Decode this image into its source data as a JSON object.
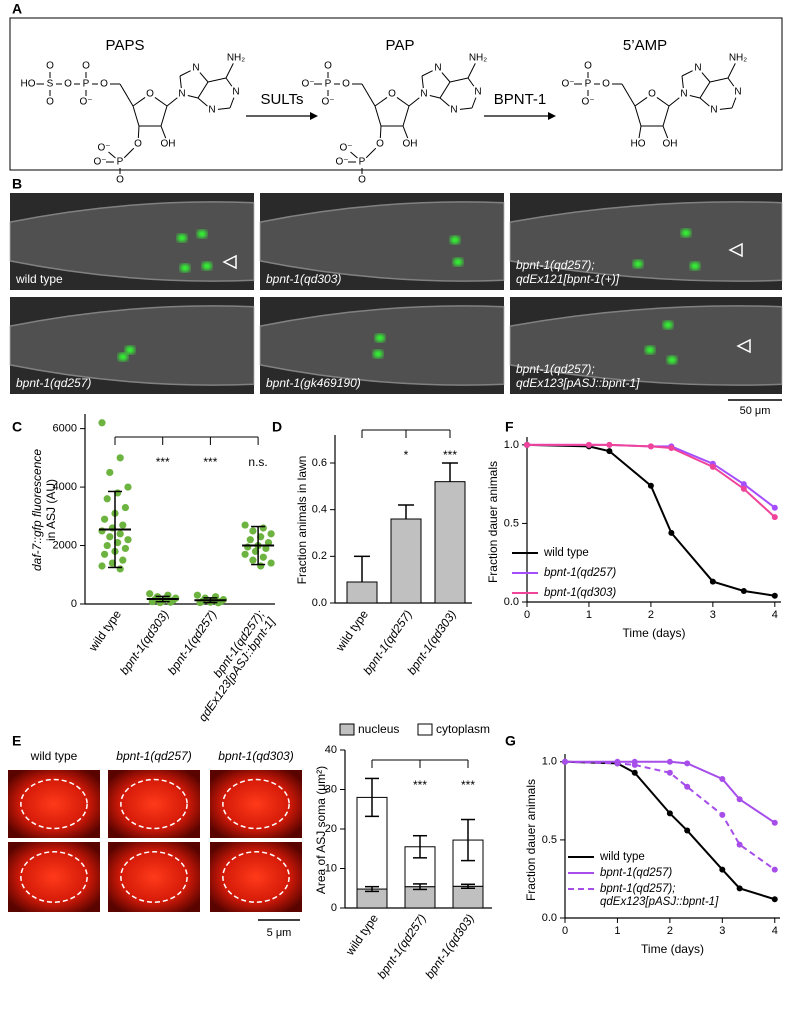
{
  "figure": {
    "panel_labels": [
      "A",
      "B",
      "C",
      "D",
      "E",
      "F",
      "G"
    ],
    "panel_a": {
      "molecules": [
        {
          "name": "PAPS",
          "atoms": [
            "O",
            "N",
            "N",
            "N",
            "N",
            "NH₂",
            "OH",
            "O",
            "P",
            "O⁻",
            "O",
            "O⁻",
            "O",
            "P",
            "O",
            "O⁻",
            "O",
            "S",
            "O",
            "O",
            "HO"
          ]
        },
        {
          "name": "PAP",
          "atoms": [
            "O",
            "N",
            "N",
            "N",
            "N",
            "NH₂",
            "OH",
            "O",
            "P",
            "O⁻",
            "O",
            "O⁻",
            "O",
            "P",
            "O",
            "O⁻",
            "O⁻"
          ]
        },
        {
          "name": "5’AMP",
          "atoms": [
            "O",
            "N",
            "N",
            "N",
            "N",
            "NH₂",
            "OH",
            "HO",
            "O",
            "P",
            "O",
            "O⁻",
            "O⁻"
          ]
        }
      ],
      "enzymes": [
        "SULTs",
        "BPNT-1"
      ]
    },
    "panel_b": {
      "images": [
        {
          "label": [
            "wild type"
          ]
        },
        {
          "label": [
            "bpnt-1(qd303)"
          ]
        },
        {
          "label": [
            "bpnt-1(qd257);",
            "qdEx121[bpnt-1(+)]"
          ]
        },
        {
          "label": [
            "bpnt-1(qd257)"
          ]
        },
        {
          "label": [
            "bpnt-1(gk469190)"
          ]
        },
        {
          "label": [
            "bpnt-1(qd257);",
            "qdEx123[pASJ::bpnt-1]"
          ]
        }
      ],
      "scale_bar": "50 μm"
    },
    "panel_e_images": {
      "labels": [
        "wild type",
        "bpnt-1(qd257)",
        "bpnt-1(qd303)"
      ],
      "scale_bar": "5 μm"
    }
  },
  "chart_data": [
    {
      "type": "dot",
      "categories": [
        "wild type",
        "bpnt-1(qd303)",
        "bpnt-1(qd257)",
        [
          "bpnt-1(qd257);",
          "qdEx123[pASJ::bpnt-1]"
        ]
      ],
      "ylabel": [
        "daf-7::gfp fluorescence",
        "in ASJ (AU)"
      ],
      "color": "#6cb33f",
      "groups": [
        {
          "points": [
            6200,
            5000,
            4500,
            4000,
            3800,
            3600,
            3300,
            3100,
            2900,
            2700,
            2600,
            2500,
            2400,
            2300,
            2200,
            2100,
            2000,
            1900,
            1800,
            1700,
            1500,
            1400,
            1300,
            1200
          ],
          "mean": 2550,
          "sd": 1300
        },
        {
          "points": [
            350,
            300,
            250,
            200,
            180,
            150,
            120,
            100,
            80,
            60,
            50
          ],
          "mean": 170,
          "sd": 90
        },
        {
          "points": [
            300,
            250,
            200,
            150,
            130,
            100,
            80,
            60,
            50,
            40
          ],
          "mean": 130,
          "sd": 80
        },
        {
          "points": [
            2700,
            2600,
            2500,
            2400,
            2300,
            2200,
            2100,
            2000,
            1950,
            1900,
            1800,
            1700,
            1600,
            1500,
            1400,
            1300
          ],
          "mean": 2000,
          "sd": 650
        }
      ],
      "significance": [
        null,
        "***",
        "***",
        "n.s."
      ],
      "ylim": [
        0,
        6500
      ],
      "yticks": [
        0,
        2000,
        4000,
        6000
      ]
    },
    {
      "type": "bar",
      "categories": [
        "wild type",
        "bpnt-1(qd257)",
        "bpnt-1(qd303)"
      ],
      "ylabel": "Fraction animals in lawn",
      "values": [
        0.09,
        0.36,
        0.52
      ],
      "errors": [
        0.11,
        0.06,
        0.08
      ],
      "color": "#c0c0c0",
      "significance": [
        null,
        "*",
        "***"
      ],
      "ylim": [
        0,
        0.72
      ],
      "yticks": [
        {
          "value": 0,
          "label": "0.0"
        },
        0.2,
        0.4,
        0.6
      ]
    },
    {
      "type": "stacked_bar",
      "categories": [
        "wild type",
        "bpnt-1(qd257)",
        "bpnt-1(qd303)"
      ],
      "ylabel": "Area of ASJ soma (μm²)",
      "series": [
        {
          "name": "nucleus",
          "color": "#c0c0c0",
          "values": [
            4.8,
            5.4,
            5.5
          ],
          "errors": [
            0.6,
            0.7,
            0.5
          ]
        },
        {
          "name": "cytoplasm",
          "color": "#ffffff",
          "values": [
            23.2,
            10.1,
            11.7
          ],
          "errors": [
            4.8,
            2.8,
            5.2
          ]
        }
      ],
      "significance": [
        null,
        "***",
        "***"
      ],
      "ylim": [
        0,
        40
      ],
      "yticks": [
        0,
        10,
        20,
        30,
        40
      ],
      "legend": "top"
    },
    {
      "type": "line",
      "xlabel": "Time (days)",
      "ylabel": "Fraction dauer animals",
      "x": [
        0,
        1,
        1.33,
        2,
        2.33,
        3,
        3.5,
        4
      ],
      "series": [
        {
          "name": "wild type",
          "color": "#000000",
          "values": [
            1.0,
            0.99,
            0.96,
            0.74,
            0.44,
            0.13,
            0.07,
            0.04
          ]
        },
        {
          "name": "bpnt-1(qd257)",
          "color": "#a64dff",
          "values": [
            1.0,
            1.0,
            1.0,
            0.99,
            0.99,
            0.88,
            0.75,
            0.6
          ]
        },
        {
          "name": "bpnt-1(qd303)",
          "color": "#f0449a",
          "values": [
            1.0,
            1.0,
            1.0,
            0.99,
            0.98,
            0.86,
            0.72,
            0.54
          ]
        }
      ],
      "xlim": [
        0,
        4.1
      ],
      "xticks": [
        0,
        1,
        2,
        3,
        4
      ],
      "ylim": [
        0,
        1.05
      ],
      "yticks": [
        {
          "value": 0,
          "label": "0.0"
        },
        0.5,
        {
          "value": 1,
          "label": "1.0"
        }
      ],
      "legend": "lower left"
    },
    {
      "type": "line",
      "xlabel": "Time (days)",
      "ylabel": "Fraction dauer animals",
      "x": [
        0,
        1,
        1.33,
        2,
        2.33,
        3,
        3.33,
        4
      ],
      "series": [
        {
          "name": "wild type",
          "color": "#000000",
          "values": [
            1.0,
            0.99,
            0.93,
            0.67,
            0.56,
            0.31,
            0.19,
            0.12
          ]
        },
        {
          "name": "bpnt-1(qd257)",
          "color": "#a64dea",
          "values": [
            1.0,
            1.0,
            1.0,
            1.0,
            0.99,
            0.89,
            0.76,
            0.61
          ]
        },
        {
          "name": [
            "bpnt-1(qd257);",
            "qdEx123[pASJ::bpnt-1]"
          ],
          "color": "#a64dea",
          "dashed": true,
          "values": [
            1.0,
            0.99,
            0.98,
            0.93,
            0.84,
            0.66,
            0.47,
            0.31
          ]
        }
      ],
      "xlim": [
        0,
        4.1
      ],
      "xticks": [
        0,
        1,
        2,
        3,
        4
      ],
      "ylim": [
        0,
        1.05
      ],
      "yticks": [
        {
          "value": 0,
          "label": "0.0"
        },
        0.5,
        {
          "value": 1,
          "label": "1.0"
        }
      ],
      "legend": "lower left"
    }
  ]
}
